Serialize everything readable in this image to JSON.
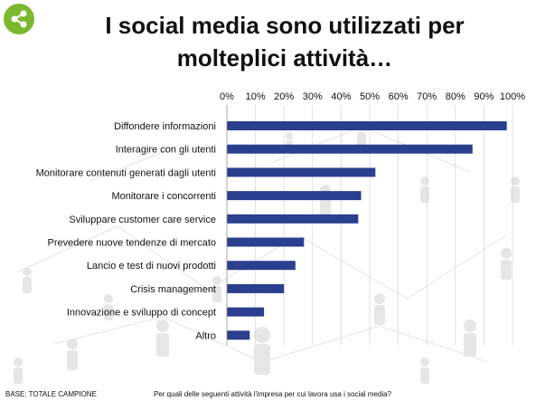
{
  "slide": {
    "title_line1": "I social media sono utilizzati per",
    "title_line2": "molteplici attività…",
    "base_note": "BASE: TOTALE CAMPIONE",
    "question_note": "Per quali delle seguenti attività l'impresa per cui lavora usa i social media?",
    "icon": "share-icon"
  },
  "colors": {
    "bar": "#2B3F8F",
    "badge": "#7CB82F",
    "gridline": "#cfcfcf",
    "background_pattern": "#d9d9d9"
  },
  "chart_data": {
    "type": "bar",
    "orientation": "horizontal",
    "categories": [
      "Diffondere informazioni",
      "Interagire con gli utenti",
      "Monitorare contenuti generati dagli utenti",
      "Monitorare i concorrenti",
      "Sviluppare customer care service",
      "Prevedere nuove tendenze di mercato",
      "Lancio e test di nuovi prodotti",
      "Crisis management",
      "Innovazione e sviluppo di concept",
      "Altro"
    ],
    "values": [
      98,
      86,
      52,
      47,
      46,
      27,
      24,
      20,
      13,
      8
    ],
    "xlim": [
      0,
      100
    ],
    "x_ticks": [
      "0%",
      "10%",
      "20%",
      "30%",
      "40%",
      "50%",
      "60%",
      "70%",
      "80%",
      "90%",
      "100%"
    ],
    "axis_position": "top",
    "grid": true,
    "legend": "none"
  }
}
